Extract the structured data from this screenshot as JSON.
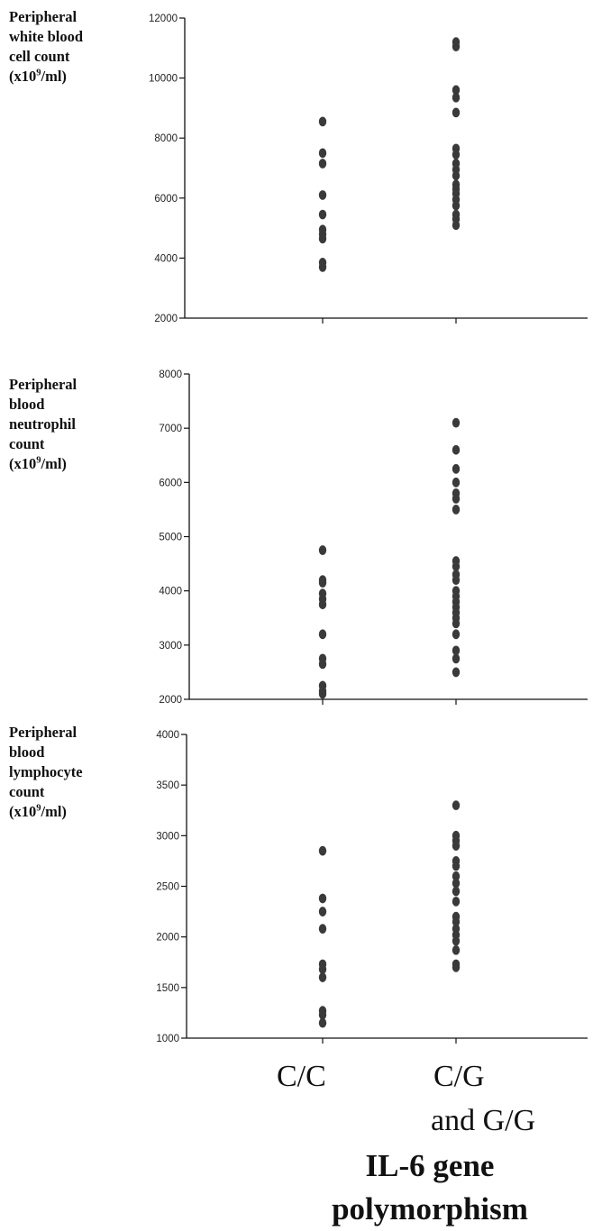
{
  "chart_data": [
    {
      "type": "scatter",
      "ylabel": "Peripheral white blood cell count (x10⁹/ml)",
      "ylabel_lines": [
        "Peripheral",
        "white blood",
        "cell count"
      ],
      "ylabel_unit_pre": "(x10",
      "ylabel_unit_sup": "9",
      "ylabel_unit_post": "/ml)",
      "ylim": [
        2000,
        12000
      ],
      "yticks": [
        2000,
        4000,
        6000,
        8000,
        10000,
        12000
      ],
      "categories": [
        "C/C",
        "C/G and G/G"
      ],
      "series": [
        {
          "category": "C/C",
          "values": [
            8550,
            7500,
            7150,
            6100,
            5450,
            4950,
            4800,
            4650,
            3850,
            3700
          ]
        },
        {
          "category": "C/G and G/G",
          "values": [
            11200,
            11050,
            9600,
            9350,
            8850,
            7650,
            7450,
            7150,
            6950,
            6750,
            6450,
            6300,
            6150,
            5950,
            5750,
            5450,
            5300,
            5100
          ]
        }
      ]
    },
    {
      "type": "scatter",
      "ylabel": "Peripheral blood neutrophil count (x10⁹/ml)",
      "ylabel_lines": [
        "Peripheral",
        "blood",
        "neutrophil",
        "count"
      ],
      "ylabel_unit_pre": "(x10",
      "ylabel_unit_sup": "9",
      "ylabel_unit_post": "/ml)",
      "ylim": [
        2000,
        8000
      ],
      "yticks": [
        2000,
        3000,
        4000,
        5000,
        6000,
        7000,
        8000
      ],
      "categories": [
        "C/C",
        "C/G and G/G"
      ],
      "series": [
        {
          "category": "C/C",
          "values": [
            4750,
            4200,
            4150,
            3950,
            3850,
            3750,
            3200,
            2750,
            2650,
            2250,
            2150,
            2100
          ]
        },
        {
          "category": "C/G and G/G",
          "values": [
            7100,
            6600,
            6250,
            6000,
            5800,
            5700,
            5500,
            4550,
            4450,
            4300,
            4200,
            4000,
            3900,
            3800,
            3700,
            3600,
            3500,
            3400,
            3200,
            2900,
            2750,
            2500
          ]
        }
      ]
    },
    {
      "type": "scatter",
      "ylabel": "Peripheral blood lymphocyte count (x10⁹/ml)",
      "ylabel_lines": [
        "Peripheral",
        "blood",
        "lymphocyte",
        "count"
      ],
      "ylabel_unit_pre": "(x10",
      "ylabel_unit_sup": "9",
      "ylabel_unit_post": "/ml)",
      "ylim": [
        1000,
        4000
      ],
      "yticks": [
        1000,
        1500,
        2000,
        2500,
        3000,
        3500,
        4000
      ],
      "categories": [
        "C/C",
        "C/G and G/G"
      ],
      "series": [
        {
          "category": "C/C",
          "values": [
            2850,
            2380,
            2250,
            2080,
            1730,
            1680,
            1600,
            1270,
            1230,
            1150
          ]
        },
        {
          "category": "C/G and G/G",
          "values": [
            3300,
            3000,
            2950,
            2900,
            2750,
            2700,
            2600,
            2530,
            2450,
            2350,
            2200,
            2150,
            2080,
            2020,
            1960,
            1870,
            1730,
            1700
          ]
        }
      ]
    }
  ],
  "x_categories": {
    "cc": "C/C",
    "cg_line1": "C/G",
    "cg_line2": "and G/G"
  },
  "x_title": "IL-6 gene polymorphism",
  "colors": {
    "marker": "#3a3a3a",
    "axis": "#111111"
  }
}
